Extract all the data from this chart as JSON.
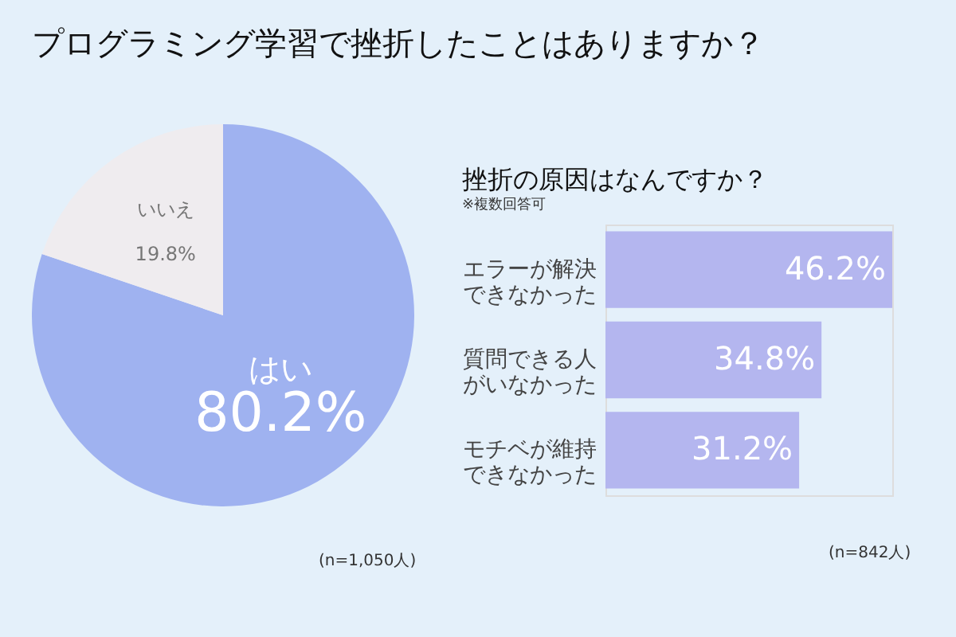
{
  "chart_data": [
    {
      "type": "pie",
      "title": "プログラミング学習で挫折したことはありますか？",
      "categories": [
        "はい",
        "いいえ"
      ],
      "values": [
        80.2,
        19.8
      ],
      "colors": [
        "#9fb2f0",
        "#efecef"
      ],
      "value_labels": [
        "80.2%",
        "19.8%"
      ],
      "annotations": [
        "(n=1,050人)"
      ]
    },
    {
      "type": "bar",
      "orientation": "horizontal",
      "title": "挫折の原因はなんですか？",
      "subtitle": "※複数回答可",
      "categories": [
        "エラーが解決できなかった",
        "質問できる人がいなかった",
        "モチベが維持できなかった"
      ],
      "values": [
        46.2,
        34.8,
        31.2
      ],
      "color": "#b4b6ef",
      "value_labels": [
        "46.2%",
        "34.8%",
        "31.2%"
      ],
      "annotations": [
        "(n=842人)"
      ]
    }
  ]
}
